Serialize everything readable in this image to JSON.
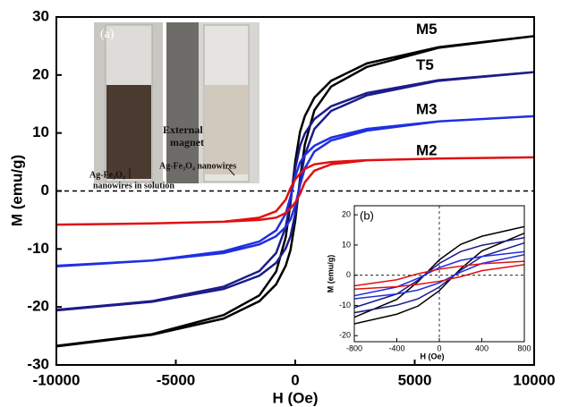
{
  "chart_data": {
    "type": "line",
    "xlabel": "H (Oe)",
    "ylabel": "M (emu/g)",
    "x": [
      -10000,
      -6000,
      -3000,
      -1500,
      -800,
      -400,
      -200,
      0,
      200,
      400,
      800,
      1500,
      3000,
      6000,
      10000,
      6000,
      3000,
      1500,
      800,
      400,
      200,
      0,
      -200,
      -400,
      -800,
      -1500,
      -3000,
      -6000,
      -10000
    ],
    "xlim": [
      -10000,
      10000
    ],
    "ylim": [
      -30,
      30
    ],
    "xticks": [
      -10000,
      -5000,
      0,
      5000,
      10000
    ],
    "yticks": [
      -30,
      -20,
      -10,
      0,
      10,
      20,
      30
    ],
    "series": [
      {
        "name": "M5",
        "color": "#000000",
        "values": [
          -26.8,
          -24.8,
          -22.0,
          -19.0,
          -16.1,
          -12.9,
          -10.2,
          -5.1,
          2.1,
          8.0,
          13.9,
          18.0,
          21.4,
          24.7,
          26.7,
          24.8,
          22.0,
          19.0,
          16.1,
          12.9,
          10.2,
          5.1,
          -2.1,
          -8.0,
          -13.9,
          -18.0,
          -21.4,
          -24.7,
          -26.7
        ]
      },
      {
        "name": "T5",
        "color": "#1c1c8a",
        "values": [
          -20.6,
          -19.1,
          -16.9,
          -14.6,
          -12.4,
          -9.9,
          -7.8,
          -3.9,
          1.6,
          6.2,
          10.7,
          13.8,
          16.5,
          19.0,
          20.5,
          19.1,
          16.9,
          14.6,
          12.4,
          9.9,
          7.8,
          3.9,
          -1.6,
          -6.2,
          -10.7,
          -13.8,
          -16.5,
          -19.0,
          -20.5
        ]
      },
      {
        "name": "M3",
        "color": "#1f2fe0",
        "values": [
          -13.0,
          -12.0,
          -10.7,
          -9.2,
          -7.8,
          -6.2,
          -4.9,
          -2.5,
          1.0,
          3.9,
          6.8,
          8.7,
          10.4,
          12.0,
          12.9,
          12.0,
          10.7,
          9.2,
          7.8,
          6.2,
          4.9,
          2.5,
          -1.0,
          -3.9,
          -6.8,
          -8.7,
          -10.4,
          -12.0,
          -12.9
        ]
      },
      {
        "name": "M2",
        "color": "#e01010",
        "values": [
          -5.8,
          -5.6,
          -5.3,
          -5.0,
          -4.6,
          -3.8,
          -3.0,
          -2.0,
          -0.5,
          1.5,
          3.5,
          4.6,
          5.3,
          5.6,
          5.8,
          5.6,
          5.3,
          5.0,
          4.6,
          3.8,
          3.0,
          2.0,
          0.5,
          -1.5,
          -3.5,
          -4.6,
          -5.3,
          -5.6,
          -5.8
        ]
      }
    ],
    "inset": {
      "label": "(b)",
      "xlabel": "H (Oe)",
      "ylabel": "M (emu/g)",
      "xlim": [
        -800,
        800
      ],
      "ylim": [
        -22,
        23
      ],
      "xticks": [
        -800,
        -400,
        0,
        400,
        800
      ],
      "yticks": [
        -20,
        -10,
        0,
        10,
        20
      ]
    },
    "photo_inset": {
      "label": "(a)",
      "magnet_line1": "External",
      "magnet_line2": "magnet",
      "left_caption_line1": "Ag-Fe₃O₄",
      "left_caption_line2": "nanowires in solution",
      "right_caption": "Ag-Fe₃O₄ nanowires"
    }
  }
}
